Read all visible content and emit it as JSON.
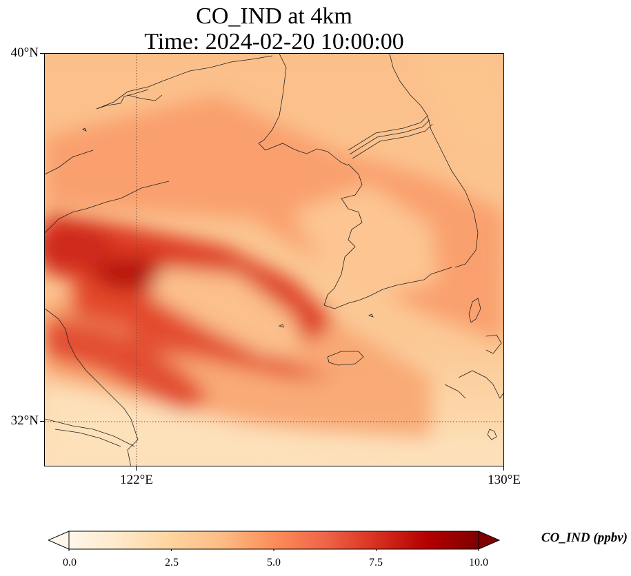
{
  "title": {
    "line1": "CO_IND at 4km",
    "line2": "Time: 2024-02-20 10:00:00"
  },
  "axes": {
    "lat_labels": [
      "40°N",
      "32°N"
    ],
    "lon_labels": [
      "122°E",
      "130°E"
    ],
    "lat_range": [
      31,
      40
    ],
    "lon_range": [
      120,
      130
    ],
    "gridlines": "dotted, at 122°E and 32°N"
  },
  "colorbar": {
    "label": "CO_IND (ppbv)",
    "ticks": [
      "0.0",
      "2.5",
      "5.0",
      "7.5",
      "10.0"
    ],
    "range": [
      0,
      10
    ],
    "extend": "both",
    "colormap": "OrRd",
    "colors": [
      "#fff7ec",
      "#fee8c8",
      "#fdd49e",
      "#fdbb84",
      "#fc8d59",
      "#ef6548",
      "#d7301f",
      "#b30000",
      "#7f0000"
    ]
  },
  "map": {
    "field_description_colors": {
      "low": "#fde4c0",
      "mid": "#fbb47c",
      "high": "#d42a1c",
      "max": "#b50f06"
    }
  }
}
